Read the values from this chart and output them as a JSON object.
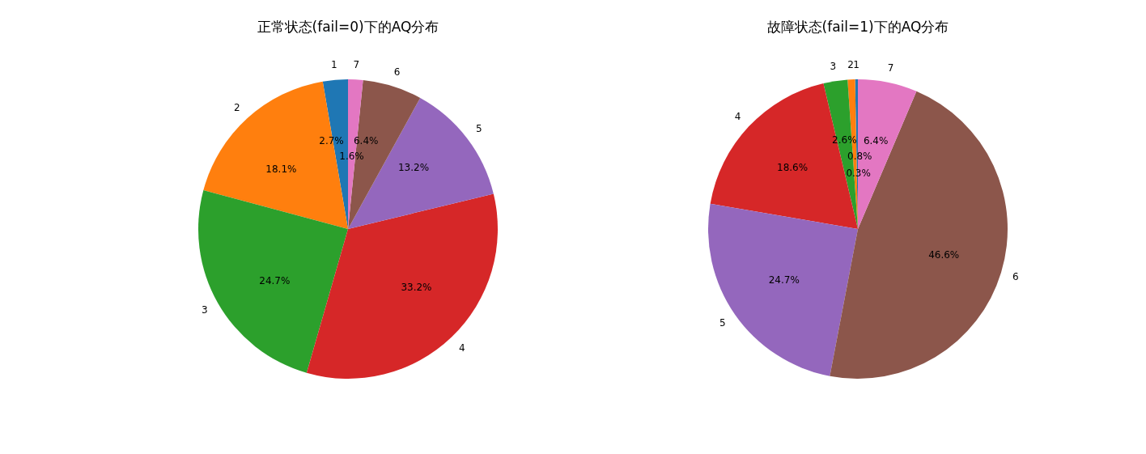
{
  "chart_data": [
    {
      "type": "pie",
      "title": "正常状态(fail=0)下的AQ分布",
      "categories": [
        "1",
        "2",
        "3",
        "4",
        "5",
        "6",
        "7"
      ],
      "values": [
        2.7,
        18.1,
        24.7,
        33.2,
        13.2,
        6.4,
        1.6
      ],
      "value_labels": [
        "2.7%",
        "18.1%",
        "24.7%",
        "33.2%",
        "13.2%",
        "6.4%",
        "1.6%"
      ],
      "colors": [
        "#1f77b4",
        "#ff7f0e",
        "#2ca02c",
        "#d62728",
        "#9467bd",
        "#8c564b",
        "#e377c2"
      ]
    },
    {
      "type": "pie",
      "title": "故障状态(fail=1)下的AQ分布",
      "categories": [
        "1",
        "2",
        "3",
        "4",
        "5",
        "6",
        "7"
      ],
      "values": [
        0.3,
        0.8,
        2.6,
        18.6,
        24.7,
        46.6,
        6.4
      ],
      "value_labels": [
        "0.3%",
        "0.8%",
        "2.6%",
        "18.6%",
        "24.7%",
        "46.6%",
        "6.4%"
      ],
      "colors": [
        "#1f77b4",
        "#ff7f0e",
        "#2ca02c",
        "#d62728",
        "#9467bd",
        "#8c564b",
        "#e377c2"
      ]
    }
  ]
}
